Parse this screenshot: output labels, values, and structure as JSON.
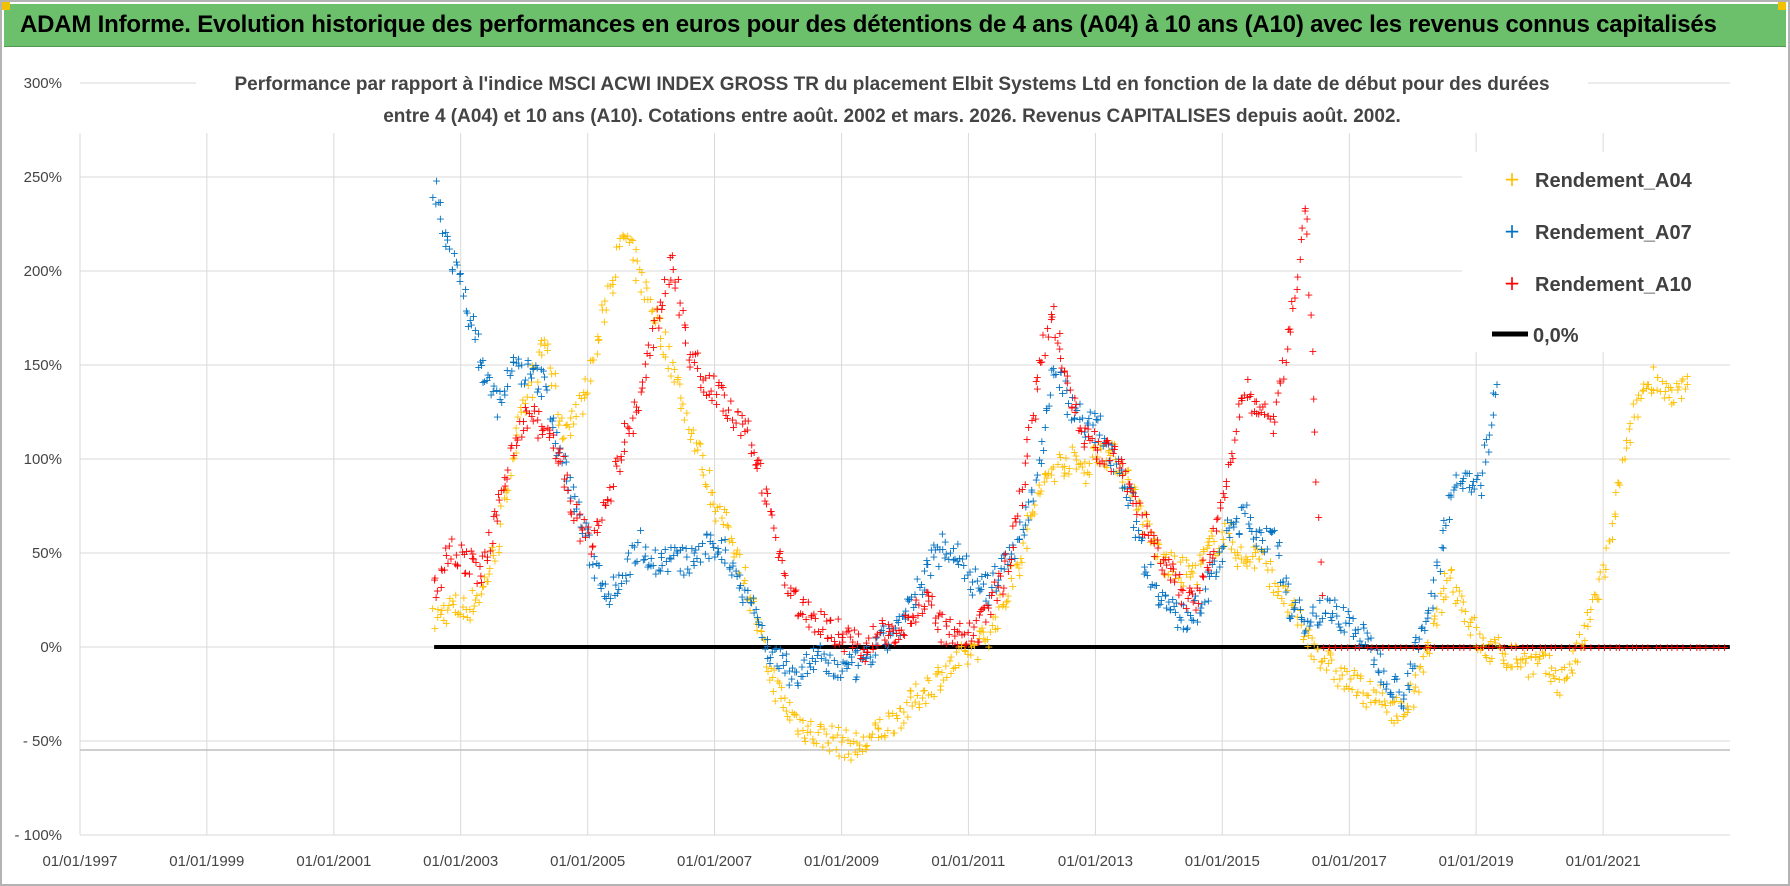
{
  "banner": {
    "title": "ADAM Informe. Evolution historique des performances en euros pour des détentions de 4 ans (A04) à 10 ans (A10) avec les revenus connus capitalisés"
  },
  "chart_data": {
    "type": "scatter",
    "title_lines": [
      "Performance par rapport à l'indice MSCI ACWI INDEX GROSS TR  du placement Elbit Systems Ltd en fonction de la date de début pour des durées",
      "entre 4 (A04) et 10 ans (A10). Cotations entre août. 2002 et mars. 2026. Revenus CAPITALISES depuis août. 2002."
    ],
    "xlabel": "",
    "ylabel": "",
    "x_range": [
      "1997-01-01",
      "2023-01-01"
    ],
    "x_ticks": [
      "01/01/1997",
      "01/01/1999",
      "01/01/2001",
      "01/01/2003",
      "01/01/2005",
      "01/01/2007",
      "01/01/2009",
      "01/01/2011",
      "01/01/2013",
      "01/01/2015",
      "01/01/2017",
      "01/01/2019",
      "01/01/2021"
    ],
    "y_range": [
      -100,
      300
    ],
    "y_ticks": [
      -100,
      -50,
      0,
      50,
      100,
      150,
      200,
      250,
      300
    ],
    "y_tick_labels": [
      "- 100%",
      "- 50%",
      "0%",
      "50%",
      "100%",
      "150%",
      "200%",
      "250%",
      "300%"
    ],
    "grid": true,
    "legend_position": "top-right",
    "legend": [
      "Rendement_A04",
      "Rendement_A07",
      "Rendement_A10",
      "0,0%"
    ],
    "colors": {
      "A04": "#ffc000",
      "A07": "#0070c0",
      "A10": "#ff0000",
      "zero": "#000000"
    },
    "series": [
      {
        "name": "Rendement_A04",
        "color": "#ffc000",
        "points": [
          [
            "2002-08-01",
            14
          ],
          [
            "2002-11-01",
            22
          ],
          [
            "2003-02-01",
            20
          ],
          [
            "2003-05-01",
            30
          ],
          [
            "2003-08-01",
            55
          ],
          [
            "2003-11-01",
            105
          ],
          [
            "2004-02-01",
            135
          ],
          [
            "2004-05-01",
            165
          ],
          [
            "2004-08-01",
            115
          ],
          [
            "2004-11-01",
            125
          ],
          [
            "2005-02-01",
            150
          ],
          [
            "2005-05-01",
            190
          ],
          [
            "2005-08-01",
            220
          ],
          [
            "2005-11-01",
            195
          ],
          [
            "2006-02-01",
            175
          ],
          [
            "2006-05-01",
            150
          ],
          [
            "2006-08-01",
            120
          ],
          [
            "2006-11-01",
            95
          ],
          [
            "2007-02-01",
            70
          ],
          [
            "2007-05-01",
            55
          ],
          [
            "2007-08-01",
            25
          ],
          [
            "2007-11-01",
            -10
          ],
          [
            "2008-02-01",
            -30
          ],
          [
            "2008-05-01",
            -40
          ],
          [
            "2008-08-01",
            -46
          ],
          [
            "2008-11-01",
            -48
          ],
          [
            "2009-02-01",
            -52
          ],
          [
            "2009-05-01",
            -53
          ],
          [
            "2009-08-01",
            -45
          ],
          [
            "2009-11-01",
            -38
          ],
          [
            "2010-02-01",
            -30
          ],
          [
            "2010-05-01",
            -22
          ],
          [
            "2010-08-01",
            -14
          ],
          [
            "2010-11-01",
            -8
          ],
          [
            "2011-02-01",
            0
          ],
          [
            "2011-05-01",
            8
          ],
          [
            "2011-08-01",
            25
          ],
          [
            "2011-11-01",
            50
          ],
          [
            "2012-02-01",
            80
          ],
          [
            "2012-05-01",
            95
          ],
          [
            "2012-08-01",
            100
          ],
          [
            "2012-11-01",
            95
          ],
          [
            "2013-02-01",
            105
          ],
          [
            "2013-05-01",
            100
          ],
          [
            "2013-08-01",
            85
          ],
          [
            "2013-11-01",
            60
          ],
          [
            "2014-02-01",
            45
          ],
          [
            "2014-05-01",
            40
          ],
          [
            "2014-08-01",
            40
          ],
          [
            "2014-11-01",
            55
          ],
          [
            "2015-02-01",
            60
          ],
          [
            "2015-05-01",
            45
          ],
          [
            "2015-08-01",
            50
          ],
          [
            "2015-11-01",
            35
          ],
          [
            "2016-02-01",
            20
          ],
          [
            "2016-05-01",
            5
          ],
          [
            "2016-08-01",
            -5
          ],
          [
            "2016-11-01",
            -15
          ],
          [
            "2017-02-01",
            -20
          ],
          [
            "2017-05-01",
            -25
          ],
          [
            "2017-08-01",
            -30
          ],
          [
            "2017-11-01",
            -35
          ],
          [
            "2018-02-01",
            -20
          ],
          [
            "2018-05-01",
            10
          ],
          [
            "2018-08-01",
            40
          ],
          [
            "2018-11-01",
            20
          ],
          [
            "2019-02-01",
            0
          ],
          [
            "2019-05-01",
            -2
          ],
          [
            "2019-08-01",
            -5
          ],
          [
            "2019-11-01",
            -8
          ],
          [
            "2020-02-01",
            -10
          ],
          [
            "2020-05-01",
            -18
          ],
          [
            "2020-08-01",
            -5
          ],
          [
            "2020-11-01",
            20
          ],
          [
            "2021-02-01",
            50
          ],
          [
            "2021-05-01",
            100
          ],
          [
            "2021-08-01",
            135
          ],
          [
            "2021-11-01",
            145
          ],
          [
            "2022-02-01",
            130
          ],
          [
            "2022-05-01",
            140
          ]
        ]
      },
      {
        "name": "Rendement_A07",
        "color": "#0070c0",
        "points": [
          [
            "2002-08-01",
            245
          ],
          [
            "2002-11-01",
            210
          ],
          [
            "2003-02-01",
            185
          ],
          [
            "2003-05-01",
            150
          ],
          [
            "2003-08-01",
            130
          ],
          [
            "2003-11-01",
            150
          ],
          [
            "2004-02-01",
            145
          ],
          [
            "2004-05-01",
            140
          ],
          [
            "2004-08-01",
            100
          ],
          [
            "2004-11-01",
            75
          ],
          [
            "2005-02-01",
            45
          ],
          [
            "2005-05-01",
            30
          ],
          [
            "2005-08-01",
            40
          ],
          [
            "2005-11-01",
            55
          ],
          [
            "2006-02-01",
            45
          ],
          [
            "2006-05-01",
            48
          ],
          [
            "2006-08-01",
            45
          ],
          [
            "2006-11-01",
            52
          ],
          [
            "2007-02-01",
            55
          ],
          [
            "2007-05-01",
            40
          ],
          [
            "2007-08-01",
            25
          ],
          [
            "2007-11-01",
            0
          ],
          [
            "2008-02-01",
            -10
          ],
          [
            "2008-05-01",
            -15
          ],
          [
            "2008-08-01",
            -5
          ],
          [
            "2008-11-01",
            -10
          ],
          [
            "2009-02-01",
            -12
          ],
          [
            "2009-05-01",
            -8
          ],
          [
            "2009-08-01",
            0
          ],
          [
            "2009-11-01",
            10
          ],
          [
            "2010-02-01",
            20
          ],
          [
            "2010-05-01",
            40
          ],
          [
            "2010-08-01",
            55
          ],
          [
            "2010-11-01",
            50
          ],
          [
            "2011-02-01",
            35
          ],
          [
            "2011-05-01",
            30
          ],
          [
            "2011-08-01",
            45
          ],
          [
            "2011-11-01",
            60
          ],
          [
            "2012-02-01",
            90
          ],
          [
            "2012-05-01",
            150
          ],
          [
            "2012-08-01",
            130
          ],
          [
            "2012-11-01",
            120
          ],
          [
            "2013-02-01",
            115
          ],
          [
            "2013-05-01",
            100
          ],
          [
            "2013-08-01",
            75
          ],
          [
            "2013-11-01",
            40
          ],
          [
            "2014-02-01",
            25
          ],
          [
            "2014-05-01",
            15
          ],
          [
            "2014-08-01",
            20
          ],
          [
            "2014-11-01",
            35
          ],
          [
            "2015-02-01",
            60
          ],
          [
            "2015-05-01",
            70
          ],
          [
            "2015-08-01",
            60
          ],
          [
            "2015-11-01",
            55
          ],
          [
            "2016-02-01",
            20
          ],
          [
            "2016-05-01",
            15
          ],
          [
            "2016-08-01",
            20
          ],
          [
            "2016-11-01",
            18
          ],
          [
            "2017-02-01",
            10
          ],
          [
            "2017-05-01",
            0
          ],
          [
            "2017-08-01",
            -15
          ],
          [
            "2017-11-01",
            -25
          ],
          [
            "2018-02-01",
            0
          ],
          [
            "2018-05-01",
            30
          ],
          [
            "2018-08-01",
            80
          ],
          [
            "2018-11-01",
            90
          ],
          [
            "2019-02-01",
            85
          ],
          [
            "2019-05-01",
            140
          ]
        ]
      },
      {
        "name": "Rendement_A10",
        "color": "#ff0000",
        "points": [
          [
            "2002-08-01",
            30
          ],
          [
            "2002-11-01",
            55
          ],
          [
            "2003-02-01",
            45
          ],
          [
            "2003-05-01",
            40
          ],
          [
            "2003-08-01",
            70
          ],
          [
            "2003-11-01",
            110
          ],
          [
            "2004-02-01",
            125
          ],
          [
            "2004-05-01",
            115
          ],
          [
            "2004-08-01",
            100
          ],
          [
            "2004-11-01",
            65
          ],
          [
            "2005-02-01",
            55
          ],
          [
            "2005-05-01",
            80
          ],
          [
            "2005-08-01",
            110
          ],
          [
            "2005-11-01",
            130
          ],
          [
            "2006-02-01",
            175
          ],
          [
            "2006-05-01",
            205
          ],
          [
            "2006-08-01",
            160
          ],
          [
            "2006-11-01",
            140
          ],
          [
            "2007-02-01",
            135
          ],
          [
            "2007-05-01",
            120
          ],
          [
            "2007-08-01",
            110
          ],
          [
            "2007-11-01",
            80
          ],
          [
            "2008-02-01",
            40
          ],
          [
            "2008-05-01",
            20
          ],
          [
            "2008-08-01",
            15
          ],
          [
            "2008-11-01",
            10
          ],
          [
            "2009-02-01",
            5
          ],
          [
            "2009-05-01",
            0
          ],
          [
            "2009-08-01",
            5
          ],
          [
            "2009-11-01",
            10
          ],
          [
            "2010-02-01",
            15
          ],
          [
            "2010-05-01",
            25
          ],
          [
            "2010-08-01",
            10
          ],
          [
            "2010-11-01",
            5
          ],
          [
            "2011-02-01",
            5
          ],
          [
            "2011-05-01",
            20
          ],
          [
            "2011-08-01",
            40
          ],
          [
            "2011-11-01",
            80
          ],
          [
            "2012-02-01",
            140
          ],
          [
            "2012-05-01",
            180
          ],
          [
            "2012-08-01",
            140
          ],
          [
            "2012-11-01",
            110
          ],
          [
            "2013-02-01",
            105
          ],
          [
            "2013-05-01",
            100
          ],
          [
            "2013-08-01",
            80
          ],
          [
            "2013-11-01",
            60
          ],
          [
            "2014-02-01",
            45
          ],
          [
            "2014-05-01",
            30
          ],
          [
            "2014-08-01",
            25
          ],
          [
            "2014-11-01",
            50
          ],
          [
            "2015-02-01",
            90
          ],
          [
            "2015-05-01",
            140
          ],
          [
            "2015-08-01",
            125
          ],
          [
            "2015-11-01",
            120
          ],
          [
            "2016-02-01",
            175
          ],
          [
            "2016-05-01",
            235
          ],
          [
            "2016-08-01",
            0
          ],
          [
            "2017-02-01",
            0
          ],
          [
            "2018-01-01",
            0
          ],
          [
            "2019-01-01",
            0
          ],
          [
            "2020-01-01",
            0
          ],
          [
            "2021-01-01",
            0
          ],
          [
            "2022-01-01",
            0
          ],
          [
            "2022-12-01",
            0
          ]
        ]
      }
    ],
    "zero_line": {
      "name": "0,0%",
      "from": "2002-08-01",
      "to": "2022-12-31",
      "value": 0
    }
  }
}
